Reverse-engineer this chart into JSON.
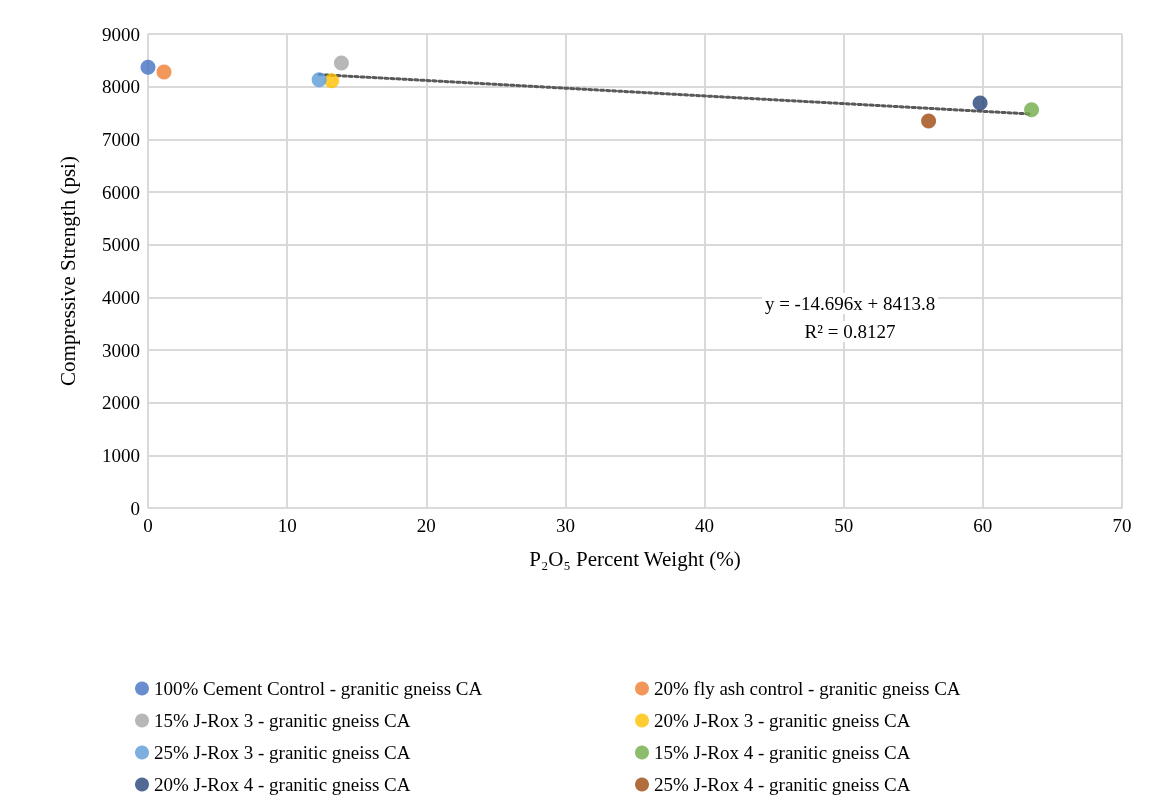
{
  "chart_data": {
    "type": "scatter",
    "xlabel": "P₂O₅ Percent Weight (%)",
    "ylabel": "Compressive Strength (psi)",
    "xlim": [
      0,
      70
    ],
    "xticks": [
      0,
      10,
      20,
      30,
      40,
      50,
      60,
      70
    ],
    "ylim": [
      0,
      9000
    ],
    "yticks": [
      0,
      1000,
      2000,
      3000,
      4000,
      5000,
      6000,
      7000,
      8000,
      9000
    ],
    "grid": true,
    "legend": "bottom",
    "marker": "circle",
    "annotations": [
      "y = -14.696x + 8413.8",
      "R² = 0.8127"
    ],
    "series": [
      {
        "name": "100% Cement Control - granitic gneiss CA",
        "color": "#4472c4",
        "x": [
          0
        ],
        "values": [
          8370
        ]
      },
      {
        "name": "20% fly ash control - granitic gneiss CA",
        "color": "#ed7d31",
        "x": [
          1.15
        ],
        "values": [
          8280
        ]
      },
      {
        "name": "15% J-Rox 3 - granitic gneiss CA",
        "color": "#a5a5a5",
        "x": [
          13.9
        ],
        "values": [
          8450
        ]
      },
      {
        "name": "20% J-Rox 3 - granitic gneiss CA",
        "color": "#ffc000",
        "x": [
          13.2
        ],
        "values": [
          8110
        ]
      },
      {
        "name": "25% J-Rox 3 - granitic gneiss CA",
        "color": "#5b9bd5",
        "x": [
          12.3
        ],
        "values": [
          8130
        ]
      },
      {
        "name": "15% J-Rox 4 - granitic gneiss CA",
        "color": "#70ad47",
        "x": [
          63.5
        ],
        "values": [
          7560
        ]
      },
      {
        "name": "20% J-Rox 4 - granitic gneiss CA",
        "color": "#264478",
        "x": [
          59.8
        ],
        "values": [
          7690
        ]
      },
      {
        "name": "25% J-Rox 4 - granitic gneiss CA",
        "color": "#9e480e",
        "x": [
          56.1
        ],
        "values": [
          7350
        ]
      },
      {
        "type": "line",
        "color": "#595959",
        "line_style": "dotted",
        "marker": "none",
        "x": [
          12.3,
          63.5
        ],
        "values": [
          8230,
          7480
        ]
      }
    ]
  }
}
